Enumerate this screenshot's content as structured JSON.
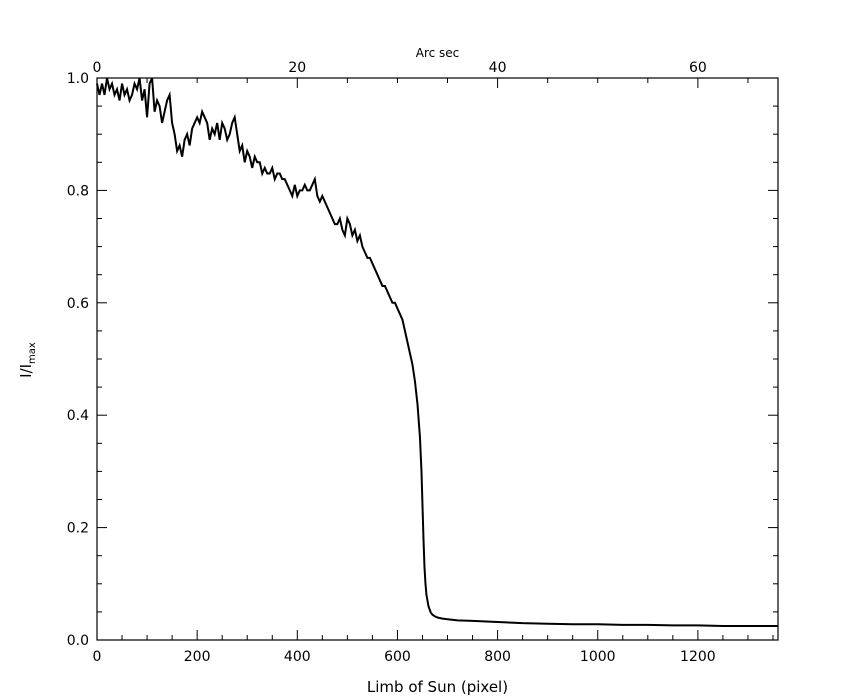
{
  "chart_data": {
    "type": "line",
    "xlabel": "Limb of Sun (pixel)",
    "ylabel": "I/I",
    "ylabel_subscript": "max",
    "top_axis_label": "Arc sec",
    "xlim": [
      0,
      1360
    ],
    "ylim": [
      0,
      1.0
    ],
    "secondary_xlim": [
      0,
      68
    ],
    "x_ticks": [
      0,
      200,
      400,
      600,
      800,
      1000,
      1200
    ],
    "x_tick_labels": [
      "0",
      "200",
      "400",
      "600",
      "800",
      "1000",
      "1200"
    ],
    "y_ticks": [
      0.0,
      0.2,
      0.4,
      0.6,
      0.8,
      1.0
    ],
    "y_tick_labels": [
      "0.0",
      "0.2",
      "0.4",
      "0.6",
      "0.8",
      "1.0"
    ],
    "top_ticks": [
      0,
      20,
      40,
      60
    ],
    "top_tick_labels": [
      "0",
      "20",
      "40",
      "60"
    ],
    "grid": false,
    "series": [
      {
        "x": [
          0,
          5,
          10,
          15,
          20,
          25,
          30,
          35,
          40,
          45,
          50,
          55,
          60,
          65,
          70,
          75,
          80,
          85,
          90,
          95,
          100,
          105,
          110,
          115,
          120,
          125,
          130,
          135,
          140,
          145,
          150,
          155,
          160,
          165,
          170,
          175,
          180,
          185,
          190,
          195,
          200,
          205,
          210,
          215,
          220,
          225,
          230,
          235,
          240,
          245,
          250,
          255,
          260,
          265,
          270,
          275,
          280,
          285,
          290,
          295,
          300,
          305,
          310,
          315,
          320,
          325,
          330,
          335,
          340,
          345,
          350,
          355,
          360,
          365,
          370,
          375,
          380,
          385,
          390,
          395,
          400,
          405,
          410,
          415,
          420,
          425,
          430,
          435,
          440,
          445,
          450,
          455,
          460,
          465,
          470,
          475,
          480,
          485,
          490,
          495,
          500,
          505,
          510,
          515,
          520,
          525,
          530,
          535,
          540,
          545,
          550,
          555,
          560,
          565,
          570,
          575,
          580,
          585,
          590,
          595,
          600,
          605,
          610,
          615,
          620,
          625,
          630,
          635,
          640,
          645,
          648,
          650,
          652,
          654,
          656,
          658,
          660,
          662,
          664,
          666,
          668,
          670,
          675,
          680,
          690,
          700,
          720,
          750,
          800,
          850,
          900,
          950,
          1000,
          1050,
          1100,
          1150,
          1200,
          1250,
          1300,
          1360
        ],
        "y": [
          0.99,
          0.97,
          0.99,
          0.97,
          1.0,
          0.98,
          0.99,
          0.97,
          0.98,
          0.96,
          0.99,
          0.97,
          0.98,
          0.96,
          0.97,
          0.99,
          0.98,
          1.0,
          0.96,
          0.98,
          0.93,
          0.99,
          1.0,
          0.94,
          0.96,
          0.95,
          0.92,
          0.94,
          0.96,
          0.97,
          0.92,
          0.9,
          0.87,
          0.88,
          0.86,
          0.89,
          0.9,
          0.88,
          0.91,
          0.92,
          0.93,
          0.92,
          0.94,
          0.93,
          0.92,
          0.89,
          0.91,
          0.9,
          0.92,
          0.89,
          0.92,
          0.91,
          0.89,
          0.9,
          0.92,
          0.93,
          0.9,
          0.87,
          0.88,
          0.85,
          0.87,
          0.86,
          0.84,
          0.86,
          0.85,
          0.85,
          0.83,
          0.84,
          0.83,
          0.83,
          0.84,
          0.82,
          0.83,
          0.83,
          0.82,
          0.82,
          0.81,
          0.8,
          0.79,
          0.81,
          0.79,
          0.8,
          0.8,
          0.81,
          0.8,
          0.8,
          0.81,
          0.82,
          0.79,
          0.78,
          0.79,
          0.78,
          0.77,
          0.76,
          0.75,
          0.74,
          0.74,
          0.75,
          0.73,
          0.72,
          0.75,
          0.74,
          0.72,
          0.73,
          0.71,
          0.72,
          0.7,
          0.69,
          0.68,
          0.68,
          0.67,
          0.66,
          0.65,
          0.64,
          0.63,
          0.63,
          0.62,
          0.61,
          0.6,
          0.6,
          0.59,
          0.58,
          0.57,
          0.55,
          0.53,
          0.51,
          0.49,
          0.46,
          0.42,
          0.36,
          0.3,
          0.24,
          0.18,
          0.13,
          0.1,
          0.08,
          0.07,
          0.06,
          0.055,
          0.05,
          0.047,
          0.045,
          0.042,
          0.04,
          0.038,
          0.037,
          0.035,
          0.034,
          0.032,
          0.03,
          0.029,
          0.028,
          0.028,
          0.027,
          0.027,
          0.026,
          0.026,
          0.025,
          0.025,
          0.025
        ]
      }
    ]
  }
}
